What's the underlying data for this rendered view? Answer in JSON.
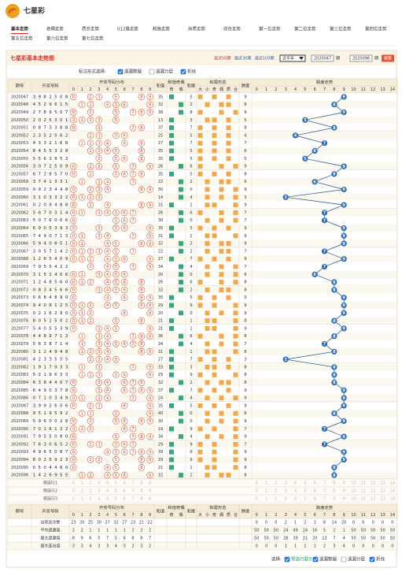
{
  "header": {
    "title": "七星彩",
    "nav": [
      "基本走势",
      "奇偶走势",
      "质合走势",
      "012路走势",
      "和值走势",
      "尚质走势",
      "综合走势",
      "第一位走势",
      "第二位走势",
      "第三位走势",
      "第四位走势",
      "第五位走势",
      "第六位走势",
      "第七位走势"
    ]
  },
  "panel": {
    "title": "七星彩基本走势图",
    "ranges": [
      "最近50期",
      "最近30期",
      "最近100期"
    ],
    "select": "近半年",
    "from": "2020047",
    "to": "2020096",
    "unit": "期",
    "button": "搜索"
  },
  "options": {
    "label": "标注形式选择:",
    "items": [
      "遗漏数据",
      "遗漏分层",
      "折线"
    ],
    "checked": [
      true,
      false,
      true
    ]
  },
  "table": {
    "columns": {
      "issue": "期号",
      "digits": "开奖号码",
      "dist": "开奖号码分布",
      "sum": "和值",
      "parity": "和值奇偶",
      "tail": "和尾",
      "shape": "和尾形态",
      "span": "跨度",
      "trend": "跨度走势"
    },
    "dist_labels": [
      0,
      1,
      2,
      3,
      4,
      5,
      6,
      7,
      8,
      9
    ],
    "parity_labels": [
      "奇",
      "偶"
    ],
    "shape_labels": [
      "大",
      "小",
      "奇",
      "偶",
      "质",
      "合"
    ],
    "trend_labels": [
      0,
      1,
      2,
      3,
      4,
      5,
      6,
      7,
      8,
      9,
      10,
      11,
      12,
      13,
      14
    ],
    "rows": [
      {
        "issue": "2020047",
        "digits": [
          3,
          9,
          8,
          2,
          5,
          0,
          8
        ],
        "sum": 35,
        "tail": 5,
        "span": 9
      },
      {
        "issue": "2020048",
        "digits": [
          4,
          5,
          2,
          9,
          6,
          1,
          5
        ],
        "sum": 32,
        "tail": 2,
        "span": 8
      },
      {
        "issue": "2020049",
        "digits": [
          2,
          7,
          8,
          9,
          5,
          0,
          7
        ],
        "sum": 38,
        "tail": 8,
        "span": 9
      },
      {
        "issue": "2020050",
        "digits": [
          2,
          0,
          2,
          5,
          3,
          0,
          1
        ],
        "sum": 13,
        "tail": 3,
        "span": 5
      },
      {
        "issue": "2020051",
        "digits": [
          0,
          8,
          7,
          3,
          3,
          8,
          8
        ],
        "sum": 37,
        "tail": 7,
        "span": 8
      },
      {
        "issue": "2020052",
        "digits": [
          2,
          3,
          5,
          2,
          5,
          6,
          2
        ],
        "sum": 25,
        "tail": 5,
        "span": 4
      },
      {
        "issue": "2020053",
        "digits": [
          4,
          3,
          3,
          2,
          1,
          6,
          8
        ],
        "sum": 27,
        "tail": 7,
        "span": 7
      },
      {
        "issue": "2020054",
        "digits": [
          8,
          4,
          5,
          5,
          3,
          2,
          8
        ],
        "sum": 35,
        "tail": 5,
        "span": 6
      },
      {
        "issue": "2020055",
        "digits": [
          5,
          5,
          6,
          3,
          8,
          5,
          3
        ],
        "sum": 35,
        "tail": 5,
        "span": 5
      },
      {
        "issue": "2020056",
        "digits": [
          3,
          0,
          7,
          2,
          5,
          0,
          9
        ],
        "sum": 26,
        "tail": 6,
        "span": 9
      },
      {
        "issue": "2020057",
        "digits": [
          6,
          7,
          2,
          8,
          5,
          7,
          0
        ],
        "sum": 35,
        "tail": 5,
        "span": 8
      },
      {
        "issue": "2020058",
        "digits": [
          3,
          7,
          4,
          1,
          3,
          3,
          1
        ],
        "sum": 22,
        "tail": 2,
        "span": 6
      },
      {
        "issue": "2020059",
        "digits": [
          0,
          9,
          2,
          3,
          4,
          4,
          8
        ],
        "sum": 30,
        "tail": 0,
        "span": 9
      },
      {
        "issue": "2020060",
        "digits": [
          3,
          1,
          0,
          3,
          3,
          2,
          2
        ],
        "sum": 14,
        "tail": 4,
        "span": 3
      },
      {
        "issue": "2020061",
        "digits": [
          0,
          2,
          0,
          9,
          4,
          8,
          8
        ],
        "sum": 31,
        "tail": 1,
        "span": 9
      },
      {
        "issue": "2020062",
        "digits": [
          5,
          6,
          7,
          0,
          3,
          1,
          4
        ],
        "sum": 26,
        "tail": 6,
        "span": 7
      },
      {
        "issue": "2020063",
        "digits": [
          5,
          0,
          7,
          6,
          0,
          6,
          6
        ],
        "sum": 30,
        "tail": 0,
        "span": 7
      },
      {
        "issue": "2020064",
        "digits": [
          6,
          9,
          0,
          5,
          3,
          9,
          3
        ],
        "sum": 35,
        "tail": 5,
        "span": 9
      },
      {
        "issue": "2020065",
        "digits": [
          7,
          4,
          9,
          0,
          7,
          1,
          3
        ],
        "sum": 31,
        "tail": 1,
        "span": 9
      },
      {
        "issue": "2020066",
        "digits": [
          5,
          9,
          4,
          0,
          8,
          5,
          1
        ],
        "sum": 32,
        "tail": 2,
        "span": 9
      },
      {
        "issue": "2020067",
        "digits": [
          3,
          0,
          5,
          7,
          1,
          4,
          2
        ],
        "sum": 22,
        "tail": 2,
        "span": 7
      },
      {
        "issue": "2020068",
        "digits": [
          1,
          2,
          6,
          5,
          4,
          0,
          9
        ],
        "sum": 27,
        "tail": 7,
        "span": 9
      },
      {
        "issue": "2020069",
        "digits": [
          7,
          9,
          5,
          5,
          4,
          2,
          2
        ],
        "sum": 34,
        "tail": 4,
        "span": 7
      },
      {
        "issue": "2020070",
        "digits": [
          3,
          1,
          5,
          1,
          4,
          0,
          6
        ],
        "sum": 20,
        "tail": 0,
        "span": 6
      },
      {
        "issue": "2020071",
        "digits": [
          1,
          2,
          4,
          8,
          5,
          6,
          0
        ],
        "sum": 26,
        "tail": 6,
        "span": 8
      },
      {
        "issue": "2020072",
        "digits": [
          0,
          8,
          3,
          4,
          5,
          6,
          6
        ],
        "sum": 32,
        "tail": 2,
        "span": 8
      },
      {
        "issue": "2020073",
        "digits": [
          0,
          6,
          8,
          4,
          8,
          9,
          0
        ],
        "sum": 35,
        "tail": 5,
        "span": 9
      },
      {
        "issue": "2020074",
        "digits": [
          9,
          4,
          0,
          8,
          1,
          2,
          5
        ],
        "sum": 29,
        "tail": 9,
        "span": 9
      },
      {
        "issue": "2020075",
        "digits": [
          0,
          2,
          1,
          6,
          2,
          9,
          0
        ],
        "sum": 20,
        "tail": 0,
        "span": 9
      },
      {
        "issue": "2020076",
        "digits": [
          8,
          0,
          5,
          1,
          5,
          0,
          2
        ],
        "sum": 21,
        "tail": 1,
        "span": 8
      },
      {
        "issue": "2020077",
        "digits": [
          5,
          4,
          0,
          5,
          5,
          3,
          9
        ],
        "sum": 31,
        "tail": 1,
        "span": 9
      },
      {
        "issue": "2020078",
        "digits": [
          4,
          4,
          8,
          9,
          7,
          1,
          3
        ],
        "sum": 36,
        "tail": 6,
        "span": 8
      },
      {
        "issue": "2020079",
        "digits": [
          5,
          6,
          3,
          8,
          7,
          1,
          4
        ],
        "sum": 34,
        "tail": 4,
        "span": 7
      },
      {
        "issue": "2020080",
        "digits": [
          3,
          1,
          2,
          4,
          9,
          4,
          8
        ],
        "sum": 31,
        "tail": 1,
        "span": 8
      },
      {
        "issue": "2020081",
        "digits": [
          4,
          2,
          3,
          3,
          5,
          5,
          5
        ],
        "sum": 27,
        "tail": 7,
        "span": 3
      },
      {
        "issue": "2020082",
        "digits": [
          1,
          9,
          1,
          7,
          9,
          3,
          3
        ],
        "sum": 33,
        "tail": 3,
        "span": 8
      },
      {
        "issue": "2020083",
        "digits": [
          5,
          2,
          1,
          9,
          6,
          3,
          3
        ],
        "sum": 29,
        "tail": 9,
        "span": 8
      },
      {
        "issue": "2020084",
        "digits": [
          6,
          3,
          8,
          4,
          4,
          0,
          7
        ],
        "sum": 32,
        "tail": 2,
        "span": 8
      },
      {
        "issue": "2020085",
        "digits": [
          6,
          4,
          9,
          0,
          3,
          7,
          8
        ],
        "sum": 37,
        "tail": 7,
        "span": 9
      },
      {
        "issue": "2020086",
        "digits": [
          0,
          7,
          1,
          0,
          3,
          4,
          9
        ],
        "sum": 24,
        "tail": 4,
        "span": 9
      },
      {
        "issue": "2020087",
        "digits": [
          3,
          9,
          9,
          2,
          6,
          0,
          6
        ],
        "sum": 35,
        "tail": 5,
        "span": 9
      },
      {
        "issue": "2020088",
        "digits": [
          9,
          5,
          1,
          9,
          5,
          9,
          2
        ],
        "sum": 40,
        "tail": 0,
        "span": 8
      },
      {
        "issue": "2020089",
        "digits": [
          5,
          9,
          6,
          0,
          0,
          2,
          8
        ],
        "sum": 30,
        "tail": 0,
        "span": 9
      },
      {
        "issue": "2020090",
        "digits": [
          7,
          0,
          1,
          6,
          1,
          2,
          2
        ],
        "sum": 19,
        "tail": 9,
        "span": 7
      },
      {
        "issue": "2020091",
        "digits": [
          7,
          9,
          5,
          5,
          0,
          8,
          0
        ],
        "sum": 34,
        "tail": 4,
        "span": 9
      },
      {
        "issue": "2020092",
        "digits": [
          7,
          6,
          3,
          0,
          6,
          5,
          2
        ],
        "sum": 29,
        "tail": 9,
        "span": 7
      },
      {
        "issue": "2020093",
        "digits": [
          4,
          9,
          6,
          5,
          0,
          8,
          7
        ],
        "sum": 39,
        "tail": 9,
        "span": 9
      },
      {
        "issue": "2020094",
        "digits": [
          8,
          0,
          2,
          5,
          9,
          2,
          3
        ],
        "sum": 29,
        "tail": 9,
        "span": 9
      },
      {
        "issue": "2020095",
        "digits": [
          0,
          5,
          0,
          4,
          4,
          8,
          0
        ],
        "sum": 21,
        "tail": 1,
        "span": 8
      },
      {
        "issue": "2020096",
        "digits": [
          1,
          4,
          2,
          6,
          9,
          5,
          5
        ],
        "sum": 32,
        "tail": 2,
        "span": 8
      }
    ],
    "preselect": [
      "预选行1",
      "预选行2",
      "预选行3"
    ],
    "stats": [
      {
        "name": "出现总次数",
        "dist": [
          23,
          20,
          25,
          30,
          27,
          32,
          27,
          23,
          21,
          22
        ],
        "trend": [
          0,
          0,
          0,
          2,
          1,
          2,
          3,
          8,
          14,
          20,
          0,
          0,
          0,
          0,
          0
        ]
      },
      {
        "name": "平均遗漏值",
        "dist": [
          2,
          2,
          1,
          1,
          1,
          1,
          1,
          2,
          2,
          2
        ],
        "trend": [
          50,
          50,
          50,
          24,
          49,
          24,
          16,
          5,
          2,
          1,
          50,
          50,
          50,
          50,
          50
        ]
      },
      {
        "name": "最大遗漏值",
        "dist": [
          8,
          9,
          6,
          5,
          7,
          5,
          6,
          8,
          8,
          7
        ],
        "trend": [
          50,
          50,
          50,
          28,
          39,
          31,
          20,
          13,
          7,
          4,
          50,
          50,
          50,
          50,
          50
        ]
      },
      {
        "name": "最大连出值",
        "dist": [
          3,
          3,
          4,
          3,
          3,
          4,
          3,
          2,
          3,
          2
        ],
        "trend": [
          0,
          0,
          0,
          1,
          1,
          1,
          1,
          2,
          3,
          4,
          0,
          0,
          0,
          0,
          0
        ]
      }
    ]
  },
  "footer": {
    "label": "选择:",
    "items": [
      "预选行展示",
      "遗漏数据",
      "遗漏分层",
      "折线"
    ],
    "checked": [
      true,
      true,
      false,
      true
    ]
  }
}
